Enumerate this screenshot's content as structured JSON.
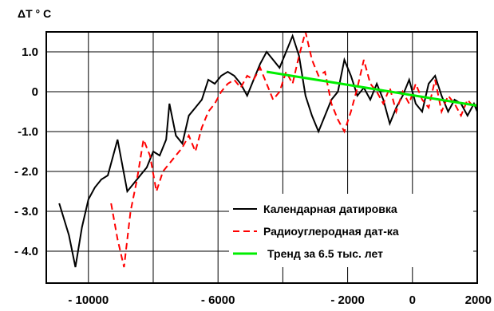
{
  "chart_data": {
    "type": "line",
    "title": "",
    "ylabel": "ΔT ° C",
    "xlabel": "",
    "xlim": [
      -11300,
      2000
    ],
    "ylim": [
      -4.8,
      1.5
    ],
    "grid": true,
    "x_ticks": [
      {
        "value": -10000,
        "label": "- 10000"
      },
      {
        "value": -6000,
        "label": "- 6000"
      },
      {
        "value": -2000,
        "label": "- 2000"
      },
      {
        "value": 0,
        "label": "0"
      },
      {
        "value": 2000,
        "label": "2000"
      }
    ],
    "x_grid": [
      -10000,
      -8000,
      -6000,
      -4000,
      -2000,
      0
    ],
    "y_ticks": [
      {
        "value": 1.0,
        "label": "1.0"
      },
      {
        "value": 0,
        "label": "0"
      },
      {
        "value": -1.0,
        "label": "-1.0"
      },
      {
        "value": -2.0,
        "label": "- 2.0"
      },
      {
        "value": -3.0,
        "label": "- 3.0"
      },
      {
        "value": -4.0,
        "label": "- 4.0"
      }
    ],
    "y_grid": [
      1.0,
      0,
      -1.0,
      -2.0,
      -3.0,
      -4.0
    ],
    "legend": {
      "placement": "bottom-right"
    },
    "series": [
      {
        "name": "Календарная датировка",
        "color": "#000000",
        "dash": "solid",
        "points": [
          [
            -10900,
            -2.8
          ],
          [
            -10600,
            -3.6
          ],
          [
            -10400,
            -4.4
          ],
          [
            -10200,
            -3.4
          ],
          [
            -10000,
            -2.7
          ],
          [
            -9800,
            -2.4
          ],
          [
            -9600,
            -2.2
          ],
          [
            -9400,
            -2.1
          ],
          [
            -9100,
            -1.2
          ],
          [
            -8800,
            -2.5
          ],
          [
            -8600,
            -2.3
          ],
          [
            -8400,
            -2.1
          ],
          [
            -8200,
            -1.9
          ],
          [
            -8000,
            -1.5
          ],
          [
            -7800,
            -1.6
          ],
          [
            -7600,
            -1.2
          ],
          [
            -7500,
            -0.3
          ],
          [
            -7300,
            -1.1
          ],
          [
            -7100,
            -1.3
          ],
          [
            -6900,
            -0.6
          ],
          [
            -6700,
            -0.4
          ],
          [
            -6500,
            -0.2
          ],
          [
            -6300,
            0.3
          ],
          [
            -6100,
            0.2
          ],
          [
            -5900,
            0.4
          ],
          [
            -5700,
            0.5
          ],
          [
            -5500,
            0.4
          ],
          [
            -5300,
            0.2
          ],
          [
            -5100,
            -0.1
          ],
          [
            -4900,
            0.3
          ],
          [
            -4700,
            0.7
          ],
          [
            -4500,
            1.0
          ],
          [
            -4300,
            0.8
          ],
          [
            -4100,
            0.6
          ],
          [
            -3900,
            1.0
          ],
          [
            -3700,
            1.4
          ],
          [
            -3500,
            0.9
          ],
          [
            -3300,
            -0.1
          ],
          [
            -3100,
            -0.6
          ],
          [
            -2900,
            -1.0
          ],
          [
            -2700,
            -0.6
          ],
          [
            -2500,
            -0.2
          ],
          [
            -2300,
            0.0
          ],
          [
            -2100,
            0.8
          ],
          [
            -1900,
            0.4
          ],
          [
            -1700,
            -0.1
          ],
          [
            -1500,
            0.1
          ],
          [
            -1300,
            -0.2
          ],
          [
            -1100,
            0.2
          ],
          [
            -900,
            -0.2
          ],
          [
            -700,
            -0.8
          ],
          [
            -500,
            -0.4
          ],
          [
            -300,
            -0.1
          ],
          [
            -100,
            0.3
          ],
          [
            100,
            -0.3
          ],
          [
            300,
            -0.5
          ],
          [
            500,
            0.2
          ],
          [
            700,
            0.4
          ],
          [
            900,
            -0.1
          ],
          [
            1100,
            -0.5
          ],
          [
            1300,
            -0.2
          ],
          [
            1500,
            -0.3
          ],
          [
            1700,
            -0.6
          ],
          [
            1900,
            -0.3
          ],
          [
            2000,
            -0.5
          ]
        ]
      },
      {
        "name": "Радиоуглеродная дат-ка",
        "color": "#ff0000",
        "dash": "dashed",
        "points": [
          [
            -9300,
            -2.8
          ],
          [
            -9100,
            -3.7
          ],
          [
            -8900,
            -4.4
          ],
          [
            -8700,
            -3.0
          ],
          [
            -8500,
            -2.2
          ],
          [
            -8300,
            -1.2
          ],
          [
            -8100,
            -1.6
          ],
          [
            -7900,
            -2.5
          ],
          [
            -7700,
            -2.0
          ],
          [
            -7500,
            -1.8
          ],
          [
            -7300,
            -1.6
          ],
          [
            -7100,
            -1.4
          ],
          [
            -6900,
            -1.1
          ],
          [
            -6700,
            -1.5
          ],
          [
            -6500,
            -0.9
          ],
          [
            -6300,
            -0.5
          ],
          [
            -6100,
            -0.3
          ],
          [
            -5900,
            0.0
          ],
          [
            -5700,
            0.2
          ],
          [
            -5500,
            0.3
          ],
          [
            -5300,
            0.1
          ],
          [
            -5100,
            0.4
          ],
          [
            -4900,
            0.3
          ],
          [
            -4700,
            0.6
          ],
          [
            -4500,
            0.2
          ],
          [
            -4300,
            -0.2
          ],
          [
            -4100,
            0.0
          ],
          [
            -3900,
            0.5
          ],
          [
            -3700,
            0.2
          ],
          [
            -3500,
            0.9
          ],
          [
            -3300,
            1.5
          ],
          [
            -3100,
            0.8
          ],
          [
            -2900,
            0.4
          ],
          [
            -2700,
            0.5
          ],
          [
            -2500,
            -0.3
          ],
          [
            -2300,
            -0.7
          ],
          [
            -2100,
            -1.0
          ],
          [
            -1900,
            -0.5
          ],
          [
            -1700,
            0.1
          ],
          [
            -1500,
            0.8
          ],
          [
            -1300,
            0.2
          ],
          [
            -1100,
            0.0
          ],
          [
            -900,
            -0.3
          ],
          [
            -700,
            0.1
          ],
          [
            -500,
            -0.5
          ],
          [
            -300,
            0.0
          ],
          [
            -100,
            -0.3
          ],
          [
            100,
            0.2
          ],
          [
            300,
            -0.2
          ],
          [
            500,
            -0.4
          ],
          [
            700,
            0.3
          ],
          [
            900,
            -0.5
          ],
          [
            1100,
            -0.1
          ],
          [
            1300,
            -0.3
          ],
          [
            1500,
            -0.6
          ],
          [
            1700,
            -0.2
          ],
          [
            1900,
            -0.4
          ],
          [
            2000,
            -0.3
          ]
        ]
      },
      {
        "name": "Тренд за 6.5 тыс. лет",
        "color": "#00ee00",
        "dash": "solid",
        "points": [
          [
            -4500,
            0.5
          ],
          [
            2000,
            -0.35
          ]
        ]
      }
    ]
  }
}
